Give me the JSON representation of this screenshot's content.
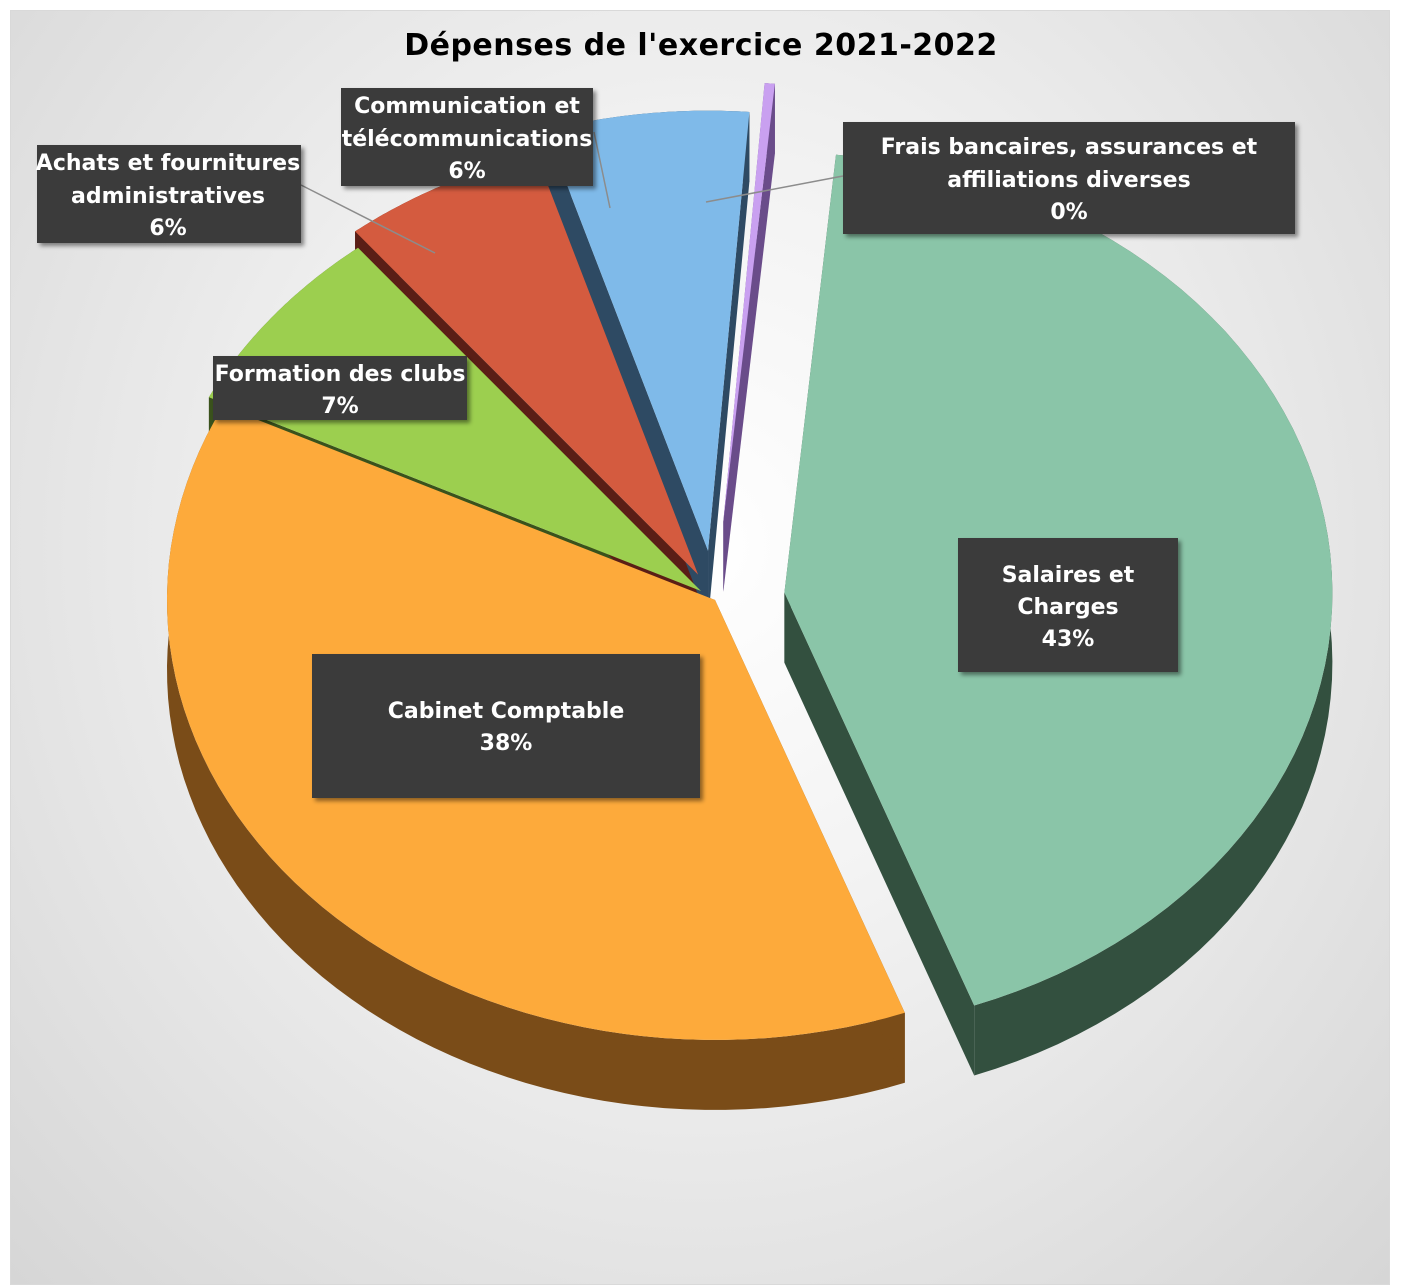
{
  "chart_data": {
    "type": "pie",
    "title": "Dépenses de l'exercice 2021-2022",
    "slices": [
      {
        "label": [
          "Salaires et",
          "Charges"
        ],
        "percent_label": "43%",
        "value": 43,
        "color": "#8AC5A8",
        "side": "#33503F"
      },
      {
        "label": [
          "Cabinet Comptable"
        ],
        "percent_label": "38%",
        "value": 38,
        "color": "#FDAA3B",
        "side": "#7A4C18"
      },
      {
        "label": [
          "Formation des clubs"
        ],
        "percent_label": "7%",
        "value": 7,
        "color": "#9CCF4F",
        "side": "#3A521C"
      },
      {
        "label": [
          "Achats et fournitures",
          "administratives"
        ],
        "percent_label": "6%",
        "value": 6,
        "color": "#D45B3F",
        "side": "#5A1E16"
      },
      {
        "label": [
          "Communication et",
          "télécommunications"
        ],
        "percent_label": "6%",
        "value": 6,
        "color": "#7FBAE9",
        "side": "#2E4A63"
      },
      {
        "label": [
          "Frais bancaires, assurances et",
          "affiliations diverses"
        ],
        "percent_label": "0%",
        "value": 0.3,
        "color": "#C9A0F0",
        "side": "#6A4C8A"
      }
    ]
  }
}
